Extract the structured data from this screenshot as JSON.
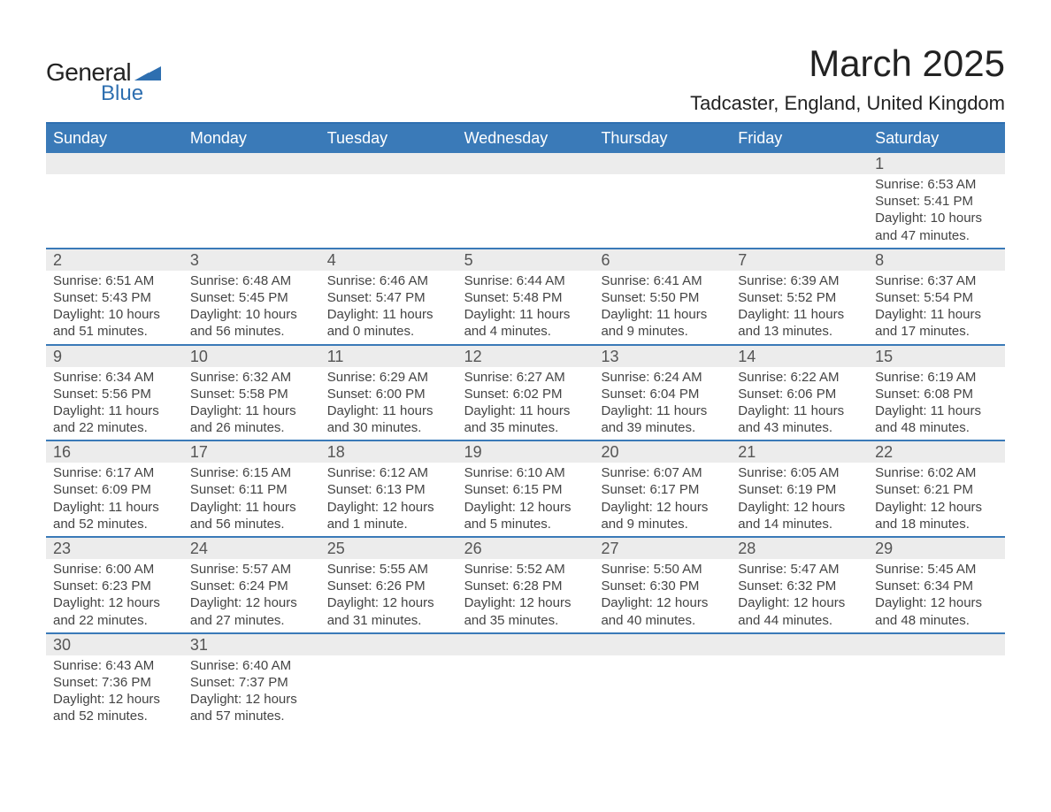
{
  "logo": {
    "text_general": "General",
    "text_blue": "Blue",
    "shape_color": "#2e6fb0"
  },
  "header": {
    "title": "March 2025",
    "location": "Tadcaster, England, United Kingdom"
  },
  "colors": {
    "header_bg": "#3a7ab8",
    "header_text": "#ffffff",
    "row_divider": "#3a7ab8",
    "daynum_bg": "#ececec",
    "daynum_text": "#555555",
    "body_text": "#444444",
    "title_text": "#222222"
  },
  "days_of_week": [
    "Sunday",
    "Monday",
    "Tuesday",
    "Wednesday",
    "Thursday",
    "Friday",
    "Saturday"
  ],
  "labels": {
    "sunrise": "Sunrise",
    "sunset": "Sunset",
    "daylight": "Daylight"
  },
  "weeks": [
    [
      {
        "day": ""
      },
      {
        "day": ""
      },
      {
        "day": ""
      },
      {
        "day": ""
      },
      {
        "day": ""
      },
      {
        "day": ""
      },
      {
        "day": "1",
        "sunrise": "6:53 AM",
        "sunset": "5:41 PM",
        "daylight": "10 hours and 47 minutes."
      }
    ],
    [
      {
        "day": "2",
        "sunrise": "6:51 AM",
        "sunset": "5:43 PM",
        "daylight": "10 hours and 51 minutes."
      },
      {
        "day": "3",
        "sunrise": "6:48 AM",
        "sunset": "5:45 PM",
        "daylight": "10 hours and 56 minutes."
      },
      {
        "day": "4",
        "sunrise": "6:46 AM",
        "sunset": "5:47 PM",
        "daylight": "11 hours and 0 minutes."
      },
      {
        "day": "5",
        "sunrise": "6:44 AM",
        "sunset": "5:48 PM",
        "daylight": "11 hours and 4 minutes."
      },
      {
        "day": "6",
        "sunrise": "6:41 AM",
        "sunset": "5:50 PM",
        "daylight": "11 hours and 9 minutes."
      },
      {
        "day": "7",
        "sunrise": "6:39 AM",
        "sunset": "5:52 PM",
        "daylight": "11 hours and 13 minutes."
      },
      {
        "day": "8",
        "sunrise": "6:37 AM",
        "sunset": "5:54 PM",
        "daylight": "11 hours and 17 minutes."
      }
    ],
    [
      {
        "day": "9",
        "sunrise": "6:34 AM",
        "sunset": "5:56 PM",
        "daylight": "11 hours and 22 minutes."
      },
      {
        "day": "10",
        "sunrise": "6:32 AM",
        "sunset": "5:58 PM",
        "daylight": "11 hours and 26 minutes."
      },
      {
        "day": "11",
        "sunrise": "6:29 AM",
        "sunset": "6:00 PM",
        "daylight": "11 hours and 30 minutes."
      },
      {
        "day": "12",
        "sunrise": "6:27 AM",
        "sunset": "6:02 PM",
        "daylight": "11 hours and 35 minutes."
      },
      {
        "day": "13",
        "sunrise": "6:24 AM",
        "sunset": "6:04 PM",
        "daylight": "11 hours and 39 minutes."
      },
      {
        "day": "14",
        "sunrise": "6:22 AM",
        "sunset": "6:06 PM",
        "daylight": "11 hours and 43 minutes."
      },
      {
        "day": "15",
        "sunrise": "6:19 AM",
        "sunset": "6:08 PM",
        "daylight": "11 hours and 48 minutes."
      }
    ],
    [
      {
        "day": "16",
        "sunrise": "6:17 AM",
        "sunset": "6:09 PM",
        "daylight": "11 hours and 52 minutes."
      },
      {
        "day": "17",
        "sunrise": "6:15 AM",
        "sunset": "6:11 PM",
        "daylight": "11 hours and 56 minutes."
      },
      {
        "day": "18",
        "sunrise": "6:12 AM",
        "sunset": "6:13 PM",
        "daylight": "12 hours and 1 minute."
      },
      {
        "day": "19",
        "sunrise": "6:10 AM",
        "sunset": "6:15 PM",
        "daylight": "12 hours and 5 minutes."
      },
      {
        "day": "20",
        "sunrise": "6:07 AM",
        "sunset": "6:17 PM",
        "daylight": "12 hours and 9 minutes."
      },
      {
        "day": "21",
        "sunrise": "6:05 AM",
        "sunset": "6:19 PM",
        "daylight": "12 hours and 14 minutes."
      },
      {
        "day": "22",
        "sunrise": "6:02 AM",
        "sunset": "6:21 PM",
        "daylight": "12 hours and 18 minutes."
      }
    ],
    [
      {
        "day": "23",
        "sunrise": "6:00 AM",
        "sunset": "6:23 PM",
        "daylight": "12 hours and 22 minutes."
      },
      {
        "day": "24",
        "sunrise": "5:57 AM",
        "sunset": "6:24 PM",
        "daylight": "12 hours and 27 minutes."
      },
      {
        "day": "25",
        "sunrise": "5:55 AM",
        "sunset": "6:26 PM",
        "daylight": "12 hours and 31 minutes."
      },
      {
        "day": "26",
        "sunrise": "5:52 AM",
        "sunset": "6:28 PM",
        "daylight": "12 hours and 35 minutes."
      },
      {
        "day": "27",
        "sunrise": "5:50 AM",
        "sunset": "6:30 PM",
        "daylight": "12 hours and 40 minutes."
      },
      {
        "day": "28",
        "sunrise": "5:47 AM",
        "sunset": "6:32 PM",
        "daylight": "12 hours and 44 minutes."
      },
      {
        "day": "29",
        "sunrise": "5:45 AM",
        "sunset": "6:34 PM",
        "daylight": "12 hours and 48 minutes."
      }
    ],
    [
      {
        "day": "30",
        "sunrise": "6:43 AM",
        "sunset": "7:36 PM",
        "daylight": "12 hours and 52 minutes."
      },
      {
        "day": "31",
        "sunrise": "6:40 AM",
        "sunset": "7:37 PM",
        "daylight": "12 hours and 57 minutes."
      },
      {
        "day": ""
      },
      {
        "day": ""
      },
      {
        "day": ""
      },
      {
        "day": ""
      },
      {
        "day": ""
      }
    ]
  ]
}
